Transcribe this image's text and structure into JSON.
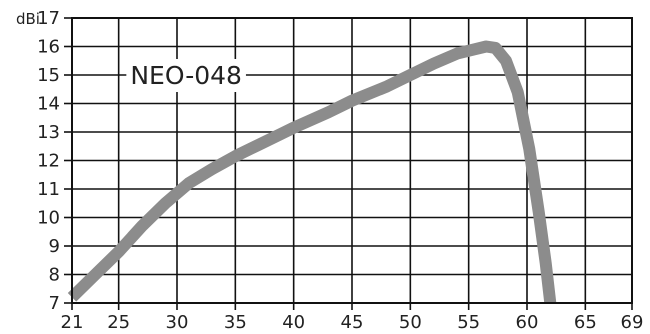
{
  "chart_data": {
    "type": "line",
    "ylabel": "dBi",
    "xlabel": "",
    "xlim": [
      21,
      69
    ],
    "ylim": [
      7,
      17
    ],
    "x_ticks": [
      21,
      25,
      30,
      35,
      40,
      45,
      50,
      55,
      60,
      65,
      69
    ],
    "y_ticks": [
      7,
      8,
      9,
      10,
      11,
      12,
      13,
      14,
      15,
      16,
      17
    ],
    "grid": true,
    "annotations": [
      {
        "text": "NEO-048",
        "x": 26,
        "y": 15
      }
    ],
    "series": [
      {
        "color": "#8c8c8c",
        "points": [
          [
            21,
            7.2
          ],
          [
            23,
            8.0
          ],
          [
            25,
            8.8
          ],
          [
            27,
            9.7
          ],
          [
            29,
            10.5
          ],
          [
            31,
            11.2
          ],
          [
            33,
            11.7
          ],
          [
            35,
            12.15
          ],
          [
            37,
            12.55
          ],
          [
            40,
            13.15
          ],
          [
            43,
            13.7
          ],
          [
            45,
            14.1
          ],
          [
            48,
            14.6
          ],
          [
            50,
            15.0
          ],
          [
            52,
            15.4
          ],
          [
            54,
            15.75
          ],
          [
            55.5,
            15.9
          ],
          [
            56.5,
            16.0
          ],
          [
            57.3,
            15.95
          ],
          [
            58.2,
            15.5
          ],
          [
            59.2,
            14.4
          ],
          [
            60.2,
            12.4
          ],
          [
            61.0,
            10.2
          ],
          [
            61.6,
            8.4
          ],
          [
            62.0,
            7.0
          ]
        ]
      }
    ]
  }
}
